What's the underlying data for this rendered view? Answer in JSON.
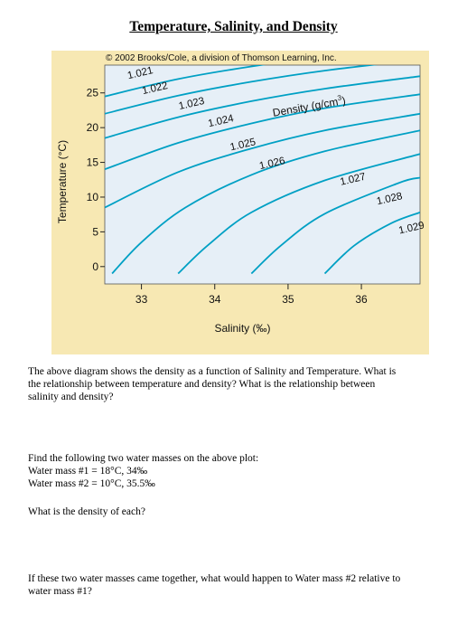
{
  "page": {
    "title": "Temperature, Salinity, and Density",
    "copyright": "© 2002 Brooks/Cole, a division of Thomson Learning, Inc.",
    "question1_lines": [
      "The above diagram shows the density as a function of Salinity and Temperature.  What is",
      "the relationship between temperature and density?  What is the relationship between",
      "salinity and density?"
    ],
    "find_intro": "Find the following two water masses on the above plot:",
    "water_mass_1": "Water mass #1 = 18°C, 34‰",
    "water_mass_2": "Water mass #2 = 10°C, 35.5‰",
    "question2": "What is the density of each?",
    "question3_lines": [
      "If these two water masses came together, what would happen to Water mass #2 relative to",
      "water mass #1?"
    ]
  },
  "chart_data": {
    "type": "line",
    "title": "",
    "xlabel": "Salinity (‰)",
    "ylabel": "Temperature (°C)",
    "xlim": [
      32.5,
      36.8
    ],
    "ylim": [
      -2.5,
      29
    ],
    "x_ticks": [
      33,
      34,
      35,
      36
    ],
    "y_ticks": [
      0,
      5,
      10,
      15,
      20,
      25
    ],
    "grid": false,
    "density_units_label": "Density (g/cm",
    "density_units_sup": "3",
    "density_units_close": ")",
    "series": [
      {
        "name": "1.021",
        "x": [
          32.5,
          33.5,
          34.5,
          35.5,
          36.8
        ],
        "y": [
          24.5,
          27.0,
          28.8,
          30.2,
          31.5
        ]
      },
      {
        "name": "1.022",
        "x": [
          32.5,
          33.5,
          34.5,
          35.5,
          36.8
        ],
        "y": [
          22.0,
          24.6,
          26.6,
          28.2,
          29.8
        ]
      },
      {
        "name": "1.023",
        "x": [
          32.5,
          33.5,
          34.5,
          35.5,
          36.8
        ],
        "y": [
          18.5,
          21.5,
          23.8,
          25.6,
          27.4
        ]
      },
      {
        "name": "1.024",
        "x": [
          32.5,
          33.5,
          34.5,
          35.5,
          36.8
        ],
        "y": [
          14.0,
          17.8,
          20.6,
          22.8,
          24.8
        ]
      },
      {
        "name": "1.025",
        "x": [
          32.5,
          33.5,
          34.5,
          35.5,
          36.8
        ],
        "y": [
          8.5,
          13.6,
          17.0,
          19.6,
          22.0
        ]
      },
      {
        "name": "1.026",
        "x": [
          32.6,
          33.0,
          33.6,
          34.5,
          35.5,
          36.8
        ],
        "y": [
          -1.0,
          3.5,
          8.5,
          13.2,
          16.6,
          19.6
        ]
      },
      {
        "name": "1.027",
        "x": [
          33.5,
          33.9,
          34.5,
          35.5,
          36.8
        ],
        "y": [
          -1.0,
          3.0,
          7.8,
          12.4,
          16.2
        ]
      },
      {
        "name": "1.028",
        "x": [
          34.5,
          34.9,
          35.5,
          36.5,
          36.8
        ],
        "y": [
          -1.0,
          3.0,
          7.6,
          12.0,
          12.8
        ]
      },
      {
        "name": "1.029",
        "x": [
          35.5,
          35.9,
          36.4,
          36.8
        ],
        "y": [
          -1.0,
          3.0,
          6.2,
          7.8
        ]
      }
    ],
    "line_labels": [
      {
        "text": "1.021",
        "x": 32.82,
        "y": 27.0
      },
      {
        "text": "1.022",
        "x": 33.02,
        "y": 24.8
      },
      {
        "text": "1.023",
        "x": 33.52,
        "y": 22.6
      },
      {
        "text": "1.024",
        "x": 33.92,
        "y": 20.1
      },
      {
        "text": "1.025",
        "x": 34.22,
        "y": 16.7
      },
      {
        "text": "1.026",
        "x": 34.62,
        "y": 14.0
      },
      {
        "text": "1.027",
        "x": 35.72,
        "y": 11.7
      },
      {
        "text": "1.028",
        "x": 36.22,
        "y": 8.9
      },
      {
        "text": "1.029",
        "x": 36.52,
        "y": 4.7
      }
    ],
    "colors": {
      "plot_bg": "#e6eff7",
      "line": "#00a0c4",
      "figure_bg": "#f7e8b3"
    }
  }
}
